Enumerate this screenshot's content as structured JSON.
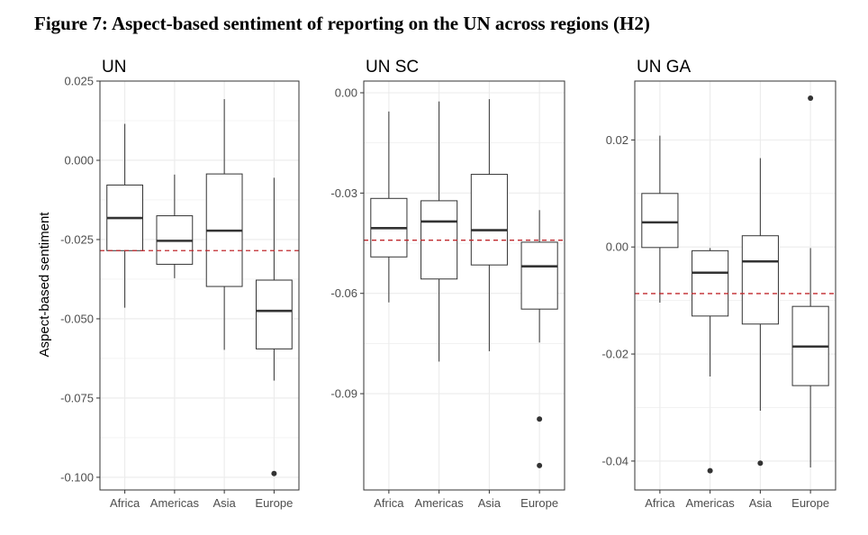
{
  "figure_title": "Figure 7: Aspect-based sentiment of reporting on the UN across regions (H2)",
  "colors": {
    "reference_line": "#c0282d",
    "box_stroke": "#333333",
    "grid": "#ebebeb",
    "panel_border": "#333333"
  },
  "chart_data": [
    {
      "type": "box",
      "title": "UN",
      "xlabel": "",
      "ylabel": "Aspect-based sentiment",
      "categories": [
        "Africa",
        "Americas",
        "Asia",
        "Europe"
      ],
      "ylim": [
        -0.104,
        0.025
      ],
      "yticks": [
        0.025,
        0.0,
        -0.025,
        -0.05,
        -0.075,
        -0.1
      ],
      "ytick_labels": [
        "0.025",
        "0.000",
        "-0.025",
        "-0.050",
        "-0.075",
        "-0.100"
      ],
      "reference_line": -0.0285,
      "boxes": [
        {
          "whisker_low": -0.0465,
          "q1": -0.0285,
          "median": -0.0182,
          "q3": -0.0078,
          "whisker_high": 0.0115,
          "outliers": []
        },
        {
          "whisker_low": -0.0372,
          "q1": -0.0328,
          "median": -0.0254,
          "q3": -0.0175,
          "whisker_high": -0.0045,
          "outliers": []
        },
        {
          "whisker_low": -0.0598,
          "q1": -0.0398,
          "median": -0.0222,
          "q3": -0.0043,
          "whisker_high": 0.0193,
          "outliers": []
        },
        {
          "whisker_low": -0.0695,
          "q1": -0.0595,
          "median": -0.0475,
          "q3": -0.0378,
          "whisker_high": -0.0055,
          "outliers": [
            -0.0988
          ]
        }
      ]
    },
    {
      "type": "box",
      "title": "UN SC",
      "xlabel": "",
      "ylabel": "",
      "categories": [
        "Africa",
        "Americas",
        "Asia",
        "Europe"
      ],
      "ylim": [
        -0.1188,
        0.0035
      ],
      "yticks": [
        0.0,
        -0.03,
        -0.06,
        -0.09
      ],
      "ytick_labels": [
        "0.00",
        "-0.03",
        "-0.06",
        "-0.09"
      ],
      "reference_line": -0.0441,
      "boxes": [
        {
          "whisker_low": -0.0627,
          "q1": -0.0491,
          "median": -0.0405,
          "q3": -0.0316,
          "whisker_high": -0.0056,
          "outliers": []
        },
        {
          "whisker_low": -0.0804,
          "q1": -0.0557,
          "median": -0.0385,
          "q3": -0.0323,
          "whisker_high": -0.0026,
          "outliers": []
        },
        {
          "whisker_low": -0.0773,
          "q1": -0.0515,
          "median": -0.0411,
          "q3": -0.0244,
          "whisker_high": -0.0019,
          "outliers": []
        },
        {
          "whisker_low": -0.0747,
          "q1": -0.0647,
          "median": -0.0519,
          "q3": -0.0447,
          "whisker_high": -0.0351,
          "outliers": [
            -0.0976,
            -0.1115
          ]
        }
      ]
    },
    {
      "type": "box",
      "title": "UN GA",
      "xlabel": "",
      "ylabel": "",
      "categories": [
        "Africa",
        "Americas",
        "Asia",
        "Europe"
      ],
      "ylim": [
        -0.0454,
        0.031
      ],
      "yticks": [
        0.02,
        0.0,
        -0.02,
        -0.04
      ],
      "ytick_labels": [
        "0.02",
        "0.00",
        "-0.02",
        "-0.04"
      ],
      "reference_line": -0.0087,
      "boxes": [
        {
          "whisker_low": -0.0104,
          "q1": -0.0001,
          "median": 0.0046,
          "q3": 0.01,
          "whisker_high": 0.0208,
          "outliers": []
        },
        {
          "whisker_low": -0.0242,
          "q1": -0.0129,
          "median": -0.0048,
          "q3": -0.0007,
          "whisker_high": -0.0002,
          "outliers": [
            -0.0418
          ]
        },
        {
          "whisker_low": -0.0306,
          "q1": -0.0144,
          "median": -0.0027,
          "q3": 0.0021,
          "whisker_high": 0.0166,
          "outliers": [
            -0.0404
          ]
        },
        {
          "whisker_low": -0.0412,
          "q1": -0.0259,
          "median": -0.0186,
          "q3": -0.0111,
          "whisker_high": -0.0002,
          "outliers": [
            0.0278
          ]
        }
      ]
    }
  ]
}
